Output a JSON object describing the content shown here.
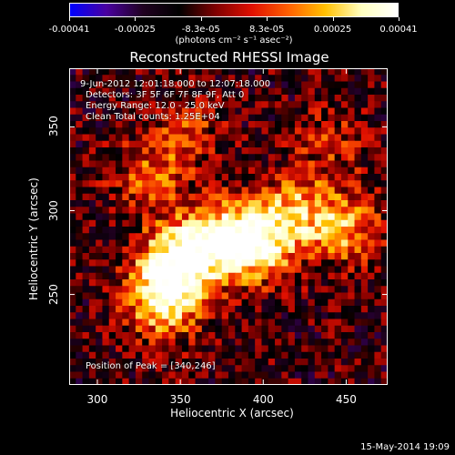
{
  "colorbar": {
    "ticks": [
      "-0.00041",
      "-0.00025",
      "-8.3e-05",
      "8.3e-05",
      "0.00025",
      "0.00041"
    ],
    "units": "(photons cm⁻² s⁻¹ asec⁻²)",
    "colormap": [
      "#0000ff",
      "#4a00a0",
      "#200020",
      "#000000",
      "#800000",
      "#e01000",
      "#ff6000",
      "#ffc000",
      "#ffffc0",
      "#ffffff"
    ]
  },
  "title": "Reconstructed RHESSI Image",
  "info": {
    "time": "9-Jun-2012 12:01:18.000 to 12:07:18.000",
    "detectors": "Detectors: 3F 5F 6F 7F 8F 9F, Att 0",
    "energy": "Energy Range: 12.0 - 25.0 keV",
    "clean": "Clean     Total counts: 1.25E+04",
    "peak": "Position of Peak = [340,246]"
  },
  "timestamp": "15-May-2014 19:09",
  "chart_data": {
    "type": "heatmap",
    "title": "Reconstructed RHESSI Image",
    "xlabel": "Heliocentric X (arcsec)",
    "ylabel": "Heliocentric Y (arcsec)",
    "xlim": [
      283,
      475
    ],
    "ylim": [
      196,
      385
    ],
    "xticks": [
      "300",
      "350",
      "400",
      "450"
    ],
    "yticks": [
      "250",
      "300",
      "350"
    ],
    "xtick_values": [
      300,
      350,
      400,
      450
    ],
    "ytick_values": [
      250,
      300,
      350
    ],
    "clim": [
      -0.00041,
      0.00041
    ],
    "peak": [
      340,
      246
    ],
    "bright_regions": [
      {
        "x": 340,
        "y": 246,
        "level": 0.00041
      },
      {
        "x": 345,
        "y": 268,
        "level": 0.00038
      },
      {
        "x": 365,
        "y": 280,
        "level": 0.00035
      },
      {
        "x": 385,
        "y": 283,
        "level": 0.0003
      },
      {
        "x": 400,
        "y": 280,
        "level": 0.00032
      },
      {
        "x": 420,
        "y": 300,
        "level": 0.00028
      },
      {
        "x": 450,
        "y": 290,
        "level": 0.0003
      },
      {
        "x": 330,
        "y": 320,
        "level": 0.00022
      },
      {
        "x": 355,
        "y": 345,
        "level": 0.00018
      },
      {
        "x": 440,
        "y": 340,
        "level": 0.00015
      }
    ]
  }
}
